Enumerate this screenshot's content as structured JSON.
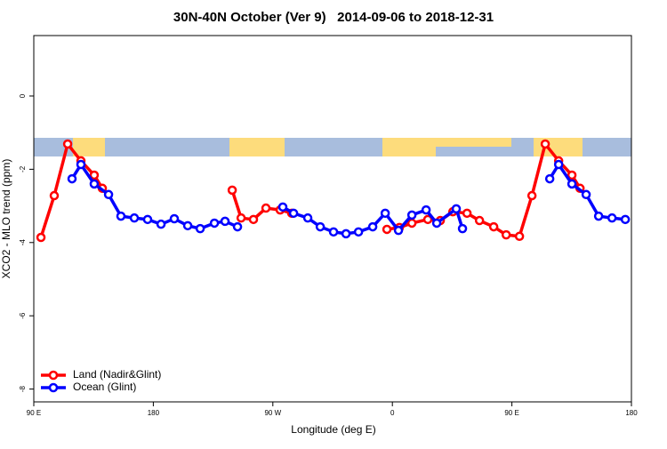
{
  "chart_data": {
    "type": "line",
    "title": "30N-40N October (Ver 9)   2014-09-06 to 2018-12-31",
    "x_label": "Longitude (deg E)",
    "y_label": "XCO2 - MLO trend (ppm)",
    "xlim": [
      90,
      540
    ],
    "xticks": [
      {
        "value": 90,
        "label": "90 E"
      },
      {
        "value": 180,
        "label": "180"
      },
      {
        "value": 270,
        "label": "90 W"
      },
      {
        "value": 360,
        "label": "0"
      },
      {
        "value": 450,
        "label": "90 E"
      },
      {
        "value": 540,
        "label": "180"
      }
    ],
    "ylim": [
      -8.35,
      1.65
    ],
    "yticks": [
      0,
      -2,
      -4,
      -6,
      -8
    ],
    "legend": "bottom-left",
    "series": [
      {
        "name": "Land (Nadir&Glint)",
        "color": "#ff0000",
        "x": [
          95.4,
          105.4,
          115.5,
          125.5,
          135.5,
          141.6,
          null,
          239.4,
          246.1,
          255.4,
          264.8,
          275.5,
          284.2,
          null,
          355.9,
          365.3,
          374.7,
          386.7,
          396.1,
          405.5,
          416.2,
          425.6,
          436.3,
          445.7,
          455.7,
          465.1,
          475.1,
          485.2,
          495.2,
          501.3
        ],
        "values": [
          -3.86,
          -2.72,
          -1.31,
          -1.77,
          -2.16,
          -2.52,
          null,
          -2.57,
          -3.33,
          -3.37,
          -3.06,
          -3.11,
          -3.2,
          null,
          -3.64,
          -3.59,
          -3.47,
          -3.37,
          -3.4,
          -3.16,
          -3.2,
          -3.4,
          -3.57,
          -3.79,
          -3.83,
          -2.72,
          -1.31,
          -1.77,
          -2.16,
          -2.52
        ]
      },
      {
        "name": "Ocean (Glint)",
        "color": "#0000ff",
        "x": [
          118.8,
          125.5,
          135.5,
          146.3,
          155.6,
          165.7,
          175.7,
          185.8,
          195.8,
          205.9,
          215.3,
          226.0,
          234.0,
          243.4,
          null,
          277.5,
          285.6,
          296.3,
          305.7,
          315.7,
          325.1,
          334.5,
          345.2,
          354.6,
          364.6,
          374.7,
          385.4,
          393.4,
          408.1,
          412.8,
          null,
          478.5,
          485.2,
          495.2,
          505.9,
          515.3,
          525.4,
          535.4
        ],
        "values": [
          -2.26,
          -1.87,
          -2.4,
          -2.69,
          -3.28,
          -3.33,
          -3.37,
          -3.5,
          -3.35,
          -3.54,
          -3.62,
          -3.47,
          -3.42,
          -3.57,
          null,
          -3.03,
          -3.2,
          -3.33,
          -3.57,
          -3.71,
          -3.76,
          -3.71,
          -3.57,
          -3.2,
          -3.67,
          -3.25,
          -3.11,
          -3.47,
          -3.08,
          -3.62,
          null,
          -2.26,
          -1.87,
          -2.4,
          -2.69,
          -3.28,
          -3.33,
          -3.37
        ]
      }
    ]
  }
}
